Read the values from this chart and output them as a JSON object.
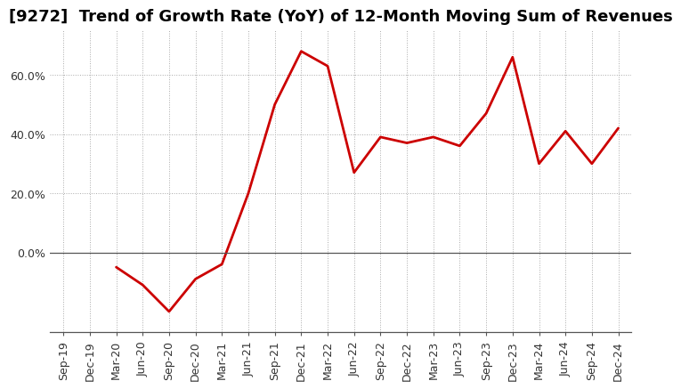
{
  "title": "[9272]  Trend of Growth Rate (YoY) of 12-Month Moving Sum of Revenues",
  "line_color": "#CC0000",
  "background_color": "#FFFFFF",
  "grid_color": "#AAAAAA",
  "x_labels": [
    "Sep-19",
    "Dec-19",
    "Mar-20",
    "Jun-20",
    "Sep-20",
    "Dec-20",
    "Mar-21",
    "Jun-21",
    "Sep-21",
    "Dec-21",
    "Mar-22",
    "Jun-22",
    "Sep-22",
    "Dec-22",
    "Mar-23",
    "Jun-23",
    "Sep-23",
    "Dec-23",
    "Mar-24",
    "Jun-24",
    "Sep-24",
    "Dec-24"
  ],
  "values": [
    null,
    null,
    -0.05,
    -0.11,
    -0.2,
    -0.09,
    -0.04,
    0.2,
    0.5,
    0.68,
    0.63,
    0.27,
    0.39,
    0.37,
    0.39,
    0.36,
    0.47,
    0.66,
    0.3,
    0.41,
    0.3,
    0.42
  ],
  "ylim": [
    -0.27,
    0.75
  ],
  "yticks": [
    0.0,
    0.2,
    0.4,
    0.6
  ],
  "ytick_labels": [
    "0.0%",
    "20.0%",
    "40.0%",
    "60.0%"
  ],
  "title_fontsize": 13,
  "tick_fontsize": 9,
  "line_width": 2.0
}
